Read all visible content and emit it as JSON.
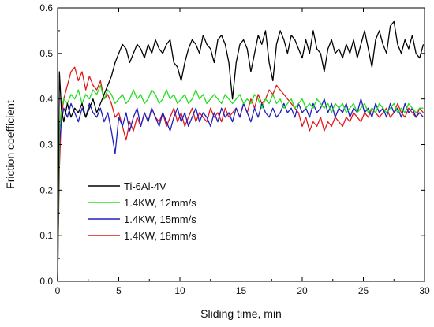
{
  "chart_data": {
    "type": "line",
    "xlabel": "Sliding time, min",
    "ylabel": "Friction coefficient",
    "xlim": [
      0,
      30
    ],
    "ylim": [
      0,
      0.6
    ],
    "x_ticks": [
      "0",
      "5",
      "10",
      "15",
      "20",
      "25",
      "30"
    ],
    "y_ticks": [
      "0.0",
      "0.1",
      "0.2",
      "0.3",
      "0.4",
      "0.5",
      "0.6"
    ],
    "legend_position": "lower-left",
    "grid": false,
    "series": [
      {
        "name": "1.4KW, 18mm/s",
        "color": "#e31a1c",
        "x": [
          0,
          0.15,
          0.3,
          0.5,
          0.8,
          1.1,
          1.4,
          1.7,
          2.0,
          2.3,
          2.6,
          2.9,
          3.2,
          3.5,
          3.8,
          4.1,
          4.4,
          4.7,
          5.0,
          5.3,
          5.6,
          5.9,
          6.2,
          6.5,
          6.8,
          7.1,
          7.4,
          7.7,
          8.0,
          8.3,
          8.6,
          8.9,
          9.2,
          9.5,
          9.8,
          10.1,
          10.4,
          10.7,
          11.0,
          11.3,
          11.6,
          11.9,
          12.2,
          12.5,
          12.8,
          13.1,
          13.4,
          13.7,
          14.0,
          14.3,
          14.6,
          14.9,
          15.2,
          15.5,
          15.8,
          16.1,
          16.4,
          16.7,
          17.0,
          17.3,
          17.6,
          17.9,
          18.2,
          18.5,
          18.8,
          19.1,
          19.4,
          19.7,
          20.0,
          20.3,
          20.6,
          20.9,
          21.2,
          21.5,
          21.8,
          22.1,
          22.4,
          22.7,
          23.0,
          23.3,
          23.6,
          23.9,
          24.2,
          24.5,
          24.8,
          25.1,
          25.4,
          25.7,
          26.0,
          26.3,
          26.6,
          26.9,
          27.2,
          27.5,
          27.8,
          28.1,
          28.4,
          28.7,
          29.0,
          29.3,
          29.6,
          29.9
        ],
        "y": [
          0.0,
          0.25,
          0.36,
          0.4,
          0.43,
          0.46,
          0.47,
          0.44,
          0.46,
          0.42,
          0.45,
          0.43,
          0.42,
          0.44,
          0.4,
          0.41,
          0.39,
          0.36,
          0.37,
          0.34,
          0.31,
          0.35,
          0.33,
          0.36,
          0.34,
          0.37,
          0.35,
          0.38,
          0.36,
          0.35,
          0.37,
          0.34,
          0.36,
          0.38,
          0.35,
          0.37,
          0.34,
          0.36,
          0.38,
          0.35,
          0.37,
          0.36,
          0.35,
          0.38,
          0.36,
          0.37,
          0.35,
          0.38,
          0.36,
          0.37,
          0.38,
          0.36,
          0.39,
          0.37,
          0.4,
          0.38,
          0.41,
          0.39,
          0.4,
          0.42,
          0.41,
          0.43,
          0.42,
          0.41,
          0.4,
          0.39,
          0.38,
          0.37,
          0.34,
          0.36,
          0.33,
          0.35,
          0.34,
          0.36,
          0.33,
          0.35,
          0.34,
          0.36,
          0.35,
          0.34,
          0.36,
          0.35,
          0.37,
          0.36,
          0.35,
          0.37,
          0.36,
          0.38,
          0.37,
          0.36,
          0.37,
          0.38,
          0.36,
          0.37,
          0.39,
          0.37,
          0.36,
          0.38,
          0.37,
          0.36,
          0.38,
          0.37
        ]
      },
      {
        "name": "1.4KW, 15mm/s",
        "color": "#1f1fbf",
        "x": [
          0,
          0.15,
          0.3,
          0.5,
          0.8,
          1.1,
          1.4,
          1.7,
          2.0,
          2.3,
          2.6,
          2.9,
          3.2,
          3.5,
          3.8,
          4.1,
          4.4,
          4.7,
          5.0,
          5.3,
          5.6,
          5.9,
          6.2,
          6.5,
          6.8,
          7.1,
          7.4,
          7.7,
          8.0,
          8.3,
          8.6,
          8.9,
          9.2,
          9.5,
          9.8,
          10.1,
          10.4,
          10.7,
          11.0,
          11.3,
          11.6,
          11.9,
          12.2,
          12.5,
          12.8,
          13.1,
          13.4,
          13.7,
          14.0,
          14.3,
          14.6,
          14.9,
          15.2,
          15.5,
          15.8,
          16.1,
          16.4,
          16.7,
          17.0,
          17.3,
          17.6,
          17.9,
          18.2,
          18.5,
          18.8,
          19.1,
          19.4,
          19.7,
          20.0,
          20.3,
          20.6,
          20.9,
          21.2,
          21.5,
          21.8,
          22.1,
          22.4,
          22.7,
          23.0,
          23.3,
          23.6,
          23.9,
          24.2,
          24.5,
          24.8,
          25.1,
          25.4,
          25.7,
          26.0,
          26.3,
          26.6,
          26.9,
          27.2,
          27.5,
          27.8,
          28.1,
          28.4,
          28.7,
          29.0,
          29.3,
          29.6,
          29.9
        ],
        "y": [
          0.0,
          0.3,
          0.35,
          0.38,
          0.36,
          0.39,
          0.37,
          0.35,
          0.38,
          0.36,
          0.39,
          0.37,
          0.36,
          0.38,
          0.35,
          0.37,
          0.33,
          0.28,
          0.36,
          0.34,
          0.37,
          0.33,
          0.36,
          0.38,
          0.34,
          0.37,
          0.35,
          0.38,
          0.36,
          0.34,
          0.37,
          0.35,
          0.33,
          0.36,
          0.38,
          0.35,
          0.37,
          0.34,
          0.36,
          0.38,
          0.35,
          0.37,
          0.36,
          0.34,
          0.37,
          0.35,
          0.38,
          0.36,
          0.37,
          0.35,
          0.38,
          0.36,
          0.39,
          0.37,
          0.35,
          0.38,
          0.36,
          0.39,
          0.37,
          0.36,
          0.38,
          0.36,
          0.37,
          0.39,
          0.37,
          0.38,
          0.36,
          0.39,
          0.37,
          0.38,
          0.36,
          0.39,
          0.37,
          0.38,
          0.4,
          0.37,
          0.39,
          0.36,
          0.38,
          0.37,
          0.39,
          0.36,
          0.38,
          0.37,
          0.4,
          0.37,
          0.38,
          0.36,
          0.39,
          0.37,
          0.38,
          0.36,
          0.39,
          0.37,
          0.38,
          0.36,
          0.39,
          0.37,
          0.38,
          0.36,
          0.37,
          0.36
        ]
      },
      {
        "name": "1.4KW, 12mm/s",
        "color": "#22dd22",
        "x": [
          0,
          0.15,
          0.3,
          0.5,
          0.8,
          1.1,
          1.4,
          1.7,
          2.0,
          2.3,
          2.6,
          2.9,
          3.2,
          3.5,
          3.8,
          4.1,
          4.4,
          4.7,
          5.0,
          5.3,
          5.6,
          5.9,
          6.2,
          6.5,
          6.8,
          7.1,
          7.4,
          7.7,
          8.0,
          8.3,
          8.6,
          8.9,
          9.2,
          9.5,
          9.8,
          10.1,
          10.4,
          10.7,
          11.0,
          11.3,
          11.6,
          11.9,
          12.2,
          12.5,
          12.8,
          13.1,
          13.4,
          13.7,
          14.0,
          14.3,
          14.6,
          14.9,
          15.2,
          15.5,
          15.8,
          16.1,
          16.4,
          16.7,
          17.0,
          17.3,
          17.6,
          17.9,
          18.2,
          18.5,
          18.8,
          19.1,
          19.4,
          19.7,
          20.0,
          20.3,
          20.6,
          20.9,
          21.2,
          21.5,
          21.8,
          22.1,
          22.4,
          22.7,
          23.0,
          23.3,
          23.6,
          23.9,
          24.2,
          24.5,
          24.8,
          25.1,
          25.4,
          25.7,
          26.0,
          26.3,
          26.6,
          26.9,
          27.2,
          27.5,
          27.8,
          28.1,
          28.4,
          28.7,
          29.0,
          29.3,
          29.6,
          29.9
        ],
        "y": [
          0.0,
          0.33,
          0.38,
          0.4,
          0.39,
          0.41,
          0.4,
          0.42,
          0.39,
          0.41,
          0.4,
          0.42,
          0.41,
          0.43,
          0.4,
          0.42,
          0.41,
          0.39,
          0.4,
          0.41,
          0.39,
          0.4,
          0.42,
          0.4,
          0.41,
          0.39,
          0.4,
          0.42,
          0.41,
          0.39,
          0.4,
          0.42,
          0.4,
          0.41,
          0.39,
          0.4,
          0.41,
          0.39,
          0.4,
          0.42,
          0.4,
          0.41,
          0.39,
          0.4,
          0.41,
          0.4,
          0.39,
          0.41,
          0.4,
          0.39,
          0.4,
          0.41,
          0.39,
          0.4,
          0.39,
          0.41,
          0.4,
          0.38,
          0.4,
          0.39,
          0.41,
          0.39,
          0.4,
          0.38,
          0.39,
          0.4,
          0.38,
          0.39,
          0.4,
          0.38,
          0.39,
          0.38,
          0.4,
          0.39,
          0.38,
          0.39,
          0.37,
          0.39,
          0.38,
          0.39,
          0.37,
          0.38,
          0.39,
          0.37,
          0.38,
          0.39,
          0.37,
          0.38,
          0.37,
          0.39,
          0.38,
          0.37,
          0.38,
          0.39,
          0.37,
          0.38,
          0.37,
          0.39,
          0.38,
          0.37,
          0.38,
          0.38
        ]
      },
      {
        "name": "Ti-6Al-4V",
        "color": "#000000",
        "x": [
          0,
          0.15,
          0.3,
          0.5,
          0.8,
          1.1,
          1.4,
          1.7,
          2.0,
          2.3,
          2.6,
          2.9,
          3.2,
          3.5,
          3.8,
          4.1,
          4.4,
          4.7,
          5.0,
          5.3,
          5.6,
          5.9,
          6.2,
          6.5,
          6.8,
          7.1,
          7.4,
          7.7,
          8.0,
          8.3,
          8.6,
          8.9,
          9.2,
          9.5,
          9.8,
          10.1,
          10.4,
          10.7,
          11.0,
          11.3,
          11.6,
          11.9,
          12.2,
          12.5,
          12.8,
          13.1,
          13.4,
          13.7,
          14.0,
          14.3,
          14.6,
          14.9,
          15.2,
          15.5,
          15.8,
          16.1,
          16.4,
          16.7,
          17.0,
          17.3,
          17.6,
          17.9,
          18.2,
          18.5,
          18.8,
          19.1,
          19.4,
          19.7,
          20.0,
          20.3,
          20.6,
          20.9,
          21.2,
          21.5,
          21.8,
          22.1,
          22.4,
          22.7,
          23.0,
          23.3,
          23.6,
          23.9,
          24.2,
          24.5,
          24.8,
          25.1,
          25.4,
          25.7,
          26.0,
          26.3,
          26.6,
          26.9,
          27.2,
          27.5,
          27.8,
          28.1,
          28.4,
          28.7,
          29.0,
          29.3,
          29.6,
          29.9
        ],
        "y": [
          0.0,
          0.46,
          0.38,
          0.35,
          0.39,
          0.36,
          0.38,
          0.37,
          0.39,
          0.36,
          0.38,
          0.4,
          0.37,
          0.39,
          0.41,
          0.43,
          0.45,
          0.48,
          0.5,
          0.52,
          0.51,
          0.48,
          0.5,
          0.52,
          0.51,
          0.49,
          0.52,
          0.5,
          0.53,
          0.51,
          0.5,
          0.52,
          0.53,
          0.48,
          0.47,
          0.44,
          0.48,
          0.51,
          0.53,
          0.52,
          0.5,
          0.54,
          0.52,
          0.51,
          0.48,
          0.53,
          0.54,
          0.52,
          0.48,
          0.4,
          0.48,
          0.52,
          0.53,
          0.51,
          0.46,
          0.5,
          0.54,
          0.52,
          0.55,
          0.48,
          0.44,
          0.52,
          0.55,
          0.53,
          0.5,
          0.54,
          0.53,
          0.51,
          0.49,
          0.53,
          0.5,
          0.55,
          0.51,
          0.5,
          0.46,
          0.51,
          0.53,
          0.5,
          0.51,
          0.49,
          0.52,
          0.5,
          0.53,
          0.49,
          0.52,
          0.55,
          0.51,
          0.47,
          0.53,
          0.55,
          0.52,
          0.5,
          0.56,
          0.57,
          0.52,
          0.5,
          0.53,
          0.51,
          0.54,
          0.5,
          0.49,
          0.52
        ]
      }
    ],
    "legend_order": [
      "Ti-6Al-4V",
      "1.4KW, 12mm/s",
      "1.4KW, 15mm/s",
      "1.4KW, 18mm/s"
    ]
  }
}
